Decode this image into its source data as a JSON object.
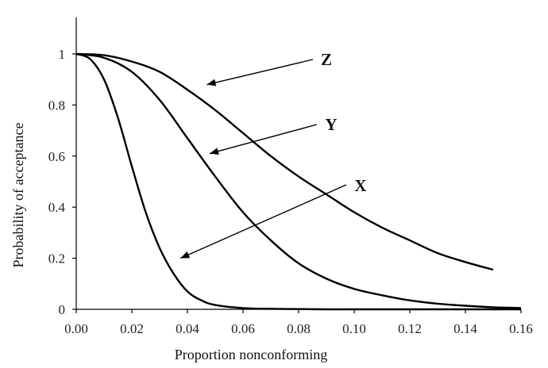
{
  "chart_data": {
    "type": "line",
    "xlabel": "Proportion nonconforming",
    "ylabel": "Probability of acceptance",
    "xlim": [
      0,
      0.16
    ],
    "ylim": [
      0,
      1.15
    ],
    "x_ticks": [
      "0.00",
      "0.02",
      "0.04",
      "0.06",
      "0.08",
      "0.10",
      "0.12",
      "0.14",
      "0.16"
    ],
    "y_ticks": [
      "0",
      "0.2",
      "0.4",
      "0.6",
      "0.8",
      "1"
    ],
    "grid": false,
    "series": [
      {
        "name": "X",
        "x": [
          0,
          0.005,
          0.01,
          0.015,
          0.02,
          0.025,
          0.03,
          0.035,
          0.04,
          0.045,
          0.05,
          0.06,
          0.07,
          0.08,
          0.09,
          0.1,
          0.12,
          0.14,
          0.16
        ],
        "y": [
          1.0,
          0.98,
          0.9,
          0.75,
          0.56,
          0.38,
          0.24,
          0.14,
          0.07,
          0.035,
          0.017,
          0.005,
          0.002,
          0.001,
          0.0,
          0.0,
          0.0,
          0.0,
          0.0
        ]
      },
      {
        "name": "Y",
        "x": [
          0,
          0.01,
          0.02,
          0.03,
          0.04,
          0.05,
          0.06,
          0.07,
          0.08,
          0.09,
          0.1,
          0.11,
          0.12,
          0.13,
          0.14,
          0.15,
          0.16
        ],
        "y": [
          1.0,
          0.985,
          0.93,
          0.82,
          0.67,
          0.52,
          0.38,
          0.27,
          0.18,
          0.12,
          0.08,
          0.055,
          0.035,
          0.022,
          0.014,
          0.008,
          0.005
        ]
      },
      {
        "name": "Z",
        "x": [
          0,
          0.01,
          0.02,
          0.03,
          0.04,
          0.05,
          0.06,
          0.07,
          0.08,
          0.09,
          0.1,
          0.11,
          0.12,
          0.13,
          0.14,
          0.15
        ],
        "y": [
          1.0,
          0.995,
          0.97,
          0.93,
          0.86,
          0.78,
          0.69,
          0.6,
          0.52,
          0.45,
          0.38,
          0.32,
          0.27,
          0.22,
          0.185,
          0.155
        ]
      }
    ],
    "annotations": [
      {
        "text": "Z",
        "series": "Z",
        "point": [
          0.047,
          0.88
        ]
      },
      {
        "text": "Y",
        "series": "Y",
        "point": [
          0.048,
          0.61
        ]
      },
      {
        "text": "X",
        "series": "X",
        "point": [
          0.0375,
          0.2
        ]
      }
    ]
  }
}
